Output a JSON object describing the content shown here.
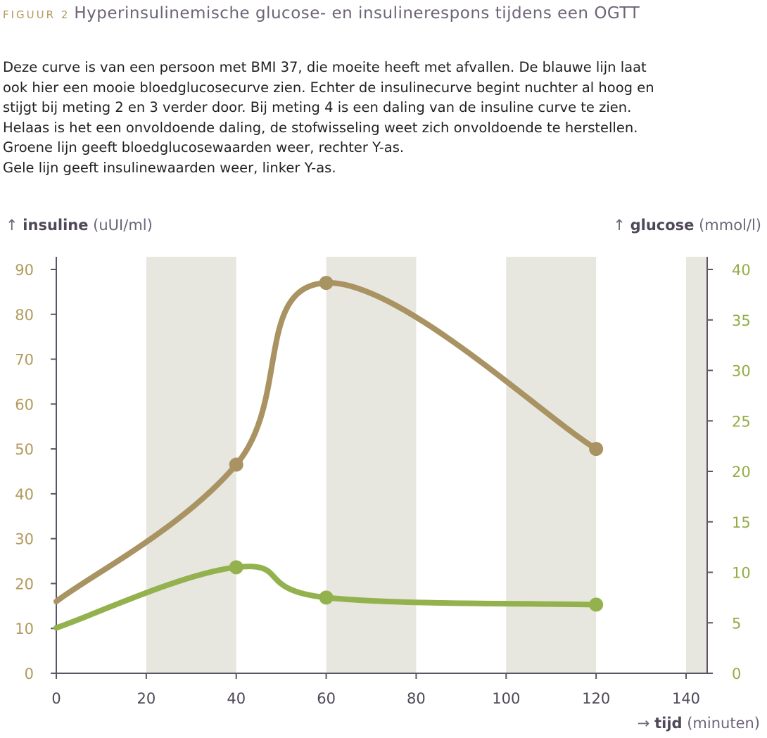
{
  "figure": {
    "label": "FIGUUR 2",
    "title": "Hyperinsulinemische glucose- en insulinerespons tijdens een OGTT"
  },
  "description": [
    "Deze curve is van een persoon met BMI 37, die moeite heeft met afvallen. De blauwe lijn laat",
    "ook hier een mooie bloedglucosecurve zien. Echter de insulinecurve begint nuchter al hoog en",
    "stijgt bij meting 2 en 3 verder door. Bij meting 4 is een daling van de insuline curve te zien.",
    "Helaas is het een onvoldoende daling, de stofwisseling weet zich onvoldoende te herstellen.",
    "Groene lijn geeft bloedglucosewaarden weer, rechter Y-as.",
    "Gele lijn geeft insulinewaarden weer, linker Y-as."
  ],
  "axes": {
    "left": {
      "arrow": "↑",
      "name": "insuline",
      "unit": "(uUI/ml)"
    },
    "right": {
      "arrow": "↑",
      "name": "glucose",
      "unit": "(mmol/l)"
    },
    "x": {
      "arrow": "→",
      "name": "tijd",
      "unit": "(minuten)"
    }
  },
  "colors": {
    "insulin": "#a99363",
    "glucose": "#93b24d",
    "left_ticks": "#b39a5e",
    "right_ticks": "#93ad45",
    "x_ticks": "#4f4858",
    "axis_line": "#5c5567",
    "band": "#e7e7df"
  },
  "chart_data": {
    "type": "line",
    "x": [
      0,
      40,
      60,
      120
    ],
    "xlim": [
      0,
      145
    ],
    "ylim": [
      0,
      90
    ],
    "y2lim": [
      0,
      40
    ],
    "x_ticks": [
      0,
      20,
      40,
      60,
      80,
      100,
      120,
      140
    ],
    "y_ticks": [
      0,
      10,
      20,
      30,
      40,
      50,
      60,
      70,
      80,
      90
    ],
    "y2_ticks": [
      0,
      5,
      10,
      15,
      20,
      25,
      30,
      35,
      40
    ],
    "shaded_bands": [
      [
        20,
        40
      ],
      [
        60,
        80
      ],
      [
        100,
        120
      ],
      [
        140,
        145
      ]
    ],
    "series": [
      {
        "axis": "left",
        "points": [
          [
            0,
            16
          ],
          [
            40,
            46.5
          ],
          [
            60,
            87
          ],
          [
            120,
            50
          ]
        ],
        "markers_at": [
          40,
          60,
          120
        ]
      },
      {
        "axis": "right",
        "points": [
          [
            0,
            4.5
          ],
          [
            40,
            10.5
          ],
          [
            60,
            7.5
          ],
          [
            120,
            6.8
          ]
        ],
        "markers_at": [
          40,
          60,
          120
        ]
      }
    ],
    "grid": false,
    "legend": "none"
  }
}
